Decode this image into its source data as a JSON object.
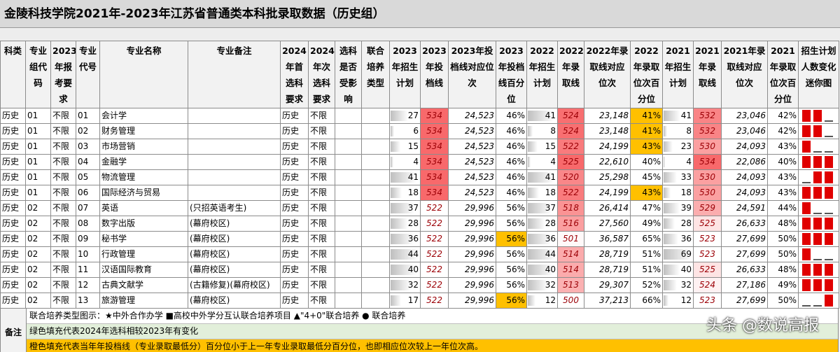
{
  "title": "金陵科技学院2021年-2023年江苏省普通类本科批录取数据（历史组）",
  "table": {
    "headers": [
      "科类",
      "专业组代码",
      "2023年报考要求",
      "专业代号",
      "专业名称",
      "专业备注",
      "2024年首选科要求",
      "2024年次选科要求",
      "选科是否受影响",
      "联合培养类型",
      "2023年招生计划",
      "2023年投档线",
      "2023年投档线对应位次",
      "2023年投档线百分位",
      "2022年招生计划",
      "2022年录取线",
      "2022年录取线对应位次",
      "2022年录取位次百分位",
      "2021年招生计划",
      "2021年录取线",
      "2021年录取线对应位次",
      "2021年录取位次百分位",
      "招生计划人数变化迷你图"
    ],
    "highlight_color": "#ffc000",
    "score_color": "#f8696b",
    "rows": [
      {
        "cells": [
          "历史",
          "01",
          "不限",
          "01",
          "会计学",
          null,
          "历史",
          "不限",
          null,
          null,
          27,
          534,
          "24,523",
          "46%",
          41,
          524,
          "23,148",
          "41%",
          41,
          532,
          "23,046",
          "42%"
        ],
        "highlight": [
          17
        ]
      },
      {
        "cells": [
          "历史",
          "01",
          "不限",
          "02",
          "财务管理",
          null,
          "历史",
          "不限",
          null,
          null,
          6,
          534,
          "24,523",
          "46%",
          8,
          524,
          "23,148",
          "41%",
          8,
          532,
          "23,046",
          "42%"
        ],
        "highlight": [
          17
        ]
      },
      {
        "cells": [
          "历史",
          "01",
          "不限",
          "03",
          "市场营销",
          null,
          "历史",
          "不限",
          null,
          null,
          15,
          534,
          "24,523",
          "46%",
          15,
          522,
          "24,199",
          "43%",
          23,
          530,
          "24,093",
          "43%"
        ],
        "highlight": [
          17
        ]
      },
      {
        "cells": [
          "历史",
          "01",
          "不限",
          "04",
          "金融学",
          null,
          "历史",
          "不限",
          null,
          null,
          4,
          534,
          "24,523",
          "46%",
          4,
          525,
          "22,610",
          "40%",
          4,
          534,
          "22,086",
          "40%"
        ],
        "highlight": []
      },
      {
        "cells": [
          "历史",
          "01",
          "不限",
          "05",
          "物流管理",
          null,
          "历史",
          "不限",
          null,
          null,
          41,
          534,
          "24,523",
          "46%",
          41,
          520,
          "25,298",
          "45%",
          33,
          530,
          "24,093",
          "43%"
        ],
        "highlight": []
      },
      {
        "cells": [
          "历史",
          "01",
          "不限",
          "06",
          "国际经济与贸易",
          null,
          "历史",
          "不限",
          null,
          null,
          18,
          534,
          "24,523",
          "46%",
          18,
          522,
          "24,199",
          "43%",
          18,
          530,
          "24,093",
          "43%"
        ],
        "highlight": [
          17
        ]
      },
      {
        "cells": [
          "历史",
          "02",
          "不限",
          "07",
          "英语",
          "(只招英语考生)",
          "历史",
          "不限",
          null,
          null,
          37,
          522,
          "29,996",
          "56%",
          37,
          518,
          "26,414",
          "47%",
          39,
          529,
          "24,591",
          "44%"
        ],
        "highlight": []
      },
      {
        "cells": [
          "历史",
          "02",
          "不限",
          "08",
          "数字出版",
          "(幕府校区)",
          "历史",
          "不限",
          null,
          null,
          28,
          522,
          "29,996",
          "56%",
          28,
          516,
          "27,560",
          "49%",
          28,
          525,
          "26,633",
          "48%"
        ],
        "highlight": []
      },
      {
        "cells": [
          "历史",
          "02",
          "不限",
          "09",
          "秘书学",
          "(幕府校区)",
          "历史",
          "不限",
          null,
          null,
          36,
          522,
          "29,996",
          "56%",
          36,
          501,
          "36,587",
          "65%",
          36,
          523,
          "27,699",
          "50%"
        ],
        "highlight": [
          13
        ]
      },
      {
        "cells": [
          "历史",
          "02",
          "不限",
          "10",
          "行政管理",
          "(幕府校区)",
          "历史",
          "不限",
          null,
          null,
          44,
          522,
          "29,996",
          "56%",
          44,
          514,
          "28,719",
          "51%",
          69,
          523,
          "27,699",
          "50%"
        ],
        "highlight": []
      },
      {
        "cells": [
          "历史",
          "02",
          "不限",
          "11",
          "汉语国际教育",
          "(幕府校区)",
          "历史",
          "不限",
          null,
          null,
          40,
          522,
          "29,996",
          "56%",
          40,
          514,
          "28,719",
          "51%",
          40,
          525,
          "26,633",
          "48%"
        ],
        "highlight": []
      },
      {
        "cells": [
          "历史",
          "02",
          "不限",
          "12",
          "古典文献学",
          "(古籍修复)(幕府校区)",
          "历史",
          "不限",
          null,
          null,
          32,
          522,
          "29,996",
          "56%",
          32,
          513,
          "29,307",
          "52%",
          32,
          524,
          "27,186",
          "49%"
        ],
        "highlight": []
      },
      {
        "cells": [
          "历史",
          "02",
          "不限",
          "13",
          "旅游管理",
          "(幕府校区)",
          "历史",
          "不限",
          null,
          null,
          17,
          522,
          "29,996",
          "56%",
          12,
          500,
          "37,213",
          "66%",
          12,
          523,
          "27,699",
          "50%"
        ],
        "highlight": [
          13
        ]
      }
    ]
  },
  "footer": {
    "label": "备注",
    "notes": [
      {
        "text": "联合培养类型图示：★中外合作办学 ■高校中外学分互认联合培养项目 ▲\"4+0\"联合培养 ● 联合培养",
        "color": "#ffffff"
      },
      {
        "text": "绿色填充代表2024年选科相较2023年有变化",
        "color": "#e2efda"
      },
      {
        "text": "橙色填充代表当年年投档线（专业录取最低分）百分位小于上一年专业录取最低分百分位，也即相应位次较上一年位次高。",
        "color": "#ffc000"
      }
    ]
  },
  "watermark": "头条 @数说高报"
}
